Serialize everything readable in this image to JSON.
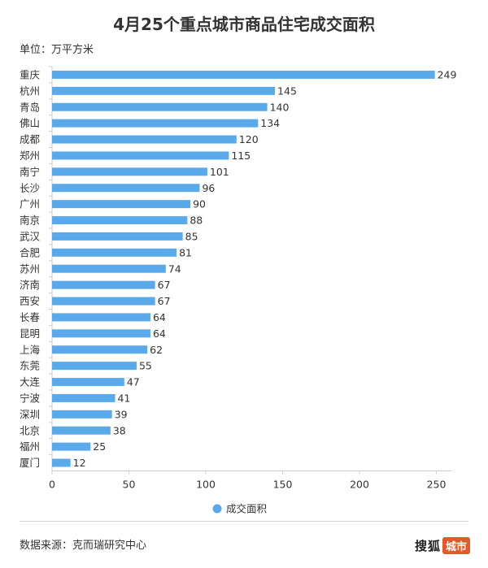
{
  "header": {
    "title": "4月25个重点城市商品住宅成交面积",
    "unit": "单位：万平方米"
  },
  "footer": {
    "source": "数据来源：克而瑞研究中心",
    "brand_name": "搜狐",
    "brand_tag": "城市"
  },
  "colors": {
    "bar": "#5aaaeb",
    "axis": "#cccccc",
    "text": "#333333"
  },
  "chart_data": {
    "type": "bar",
    "orientation": "horizontal",
    "title": "4月25个重点城市商品住宅成交面积",
    "unit": "单位：万平方米",
    "categories": [
      "重庆",
      "杭州",
      "青岛",
      "佛山",
      "成都",
      "郑州",
      "南宁",
      "长沙",
      "广州",
      "南京",
      "武汉",
      "合肥",
      "苏州",
      "济南",
      "西安",
      "长春",
      "昆明",
      "上海",
      "东莞",
      "大连",
      "宁波",
      "深圳",
      "北京",
      "福州",
      "厦门"
    ],
    "series": [
      {
        "name": "成交面积",
        "values": [
          249,
          145,
          140,
          134,
          120,
          115,
          101,
          96,
          90,
          88,
          85,
          81,
          74,
          67,
          67,
          64,
          64,
          62,
          55,
          47,
          41,
          39,
          38,
          25,
          12
        ]
      }
    ],
    "x_ticks": [
      0,
      50,
      100,
      150,
      200,
      250
    ],
    "xlim": [
      0,
      260
    ],
    "legend_position": "bottom",
    "grid": false
  }
}
